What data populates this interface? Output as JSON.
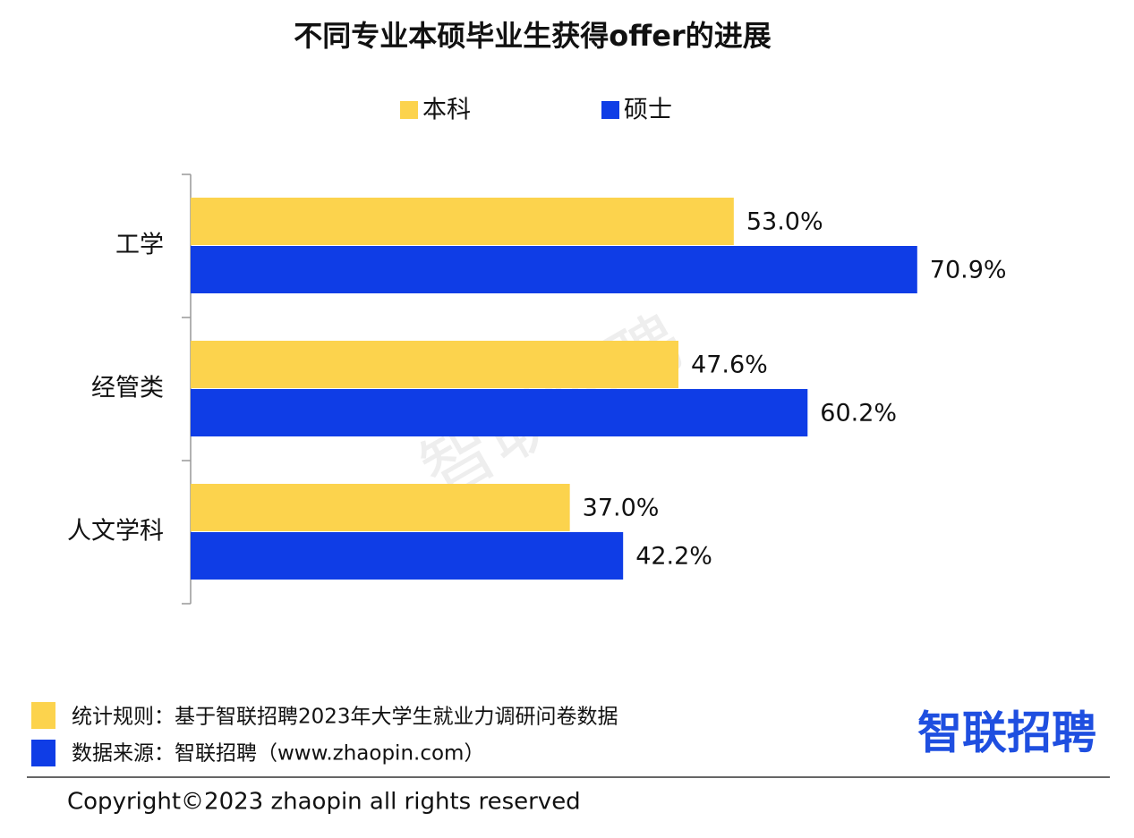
{
  "chart_data": {
    "type": "bar",
    "orientation": "horizontal",
    "title": "不同专业本硕毕业生获得offer的进展",
    "categories": [
      "工学",
      "经管类",
      "人文学科"
    ],
    "series": [
      {
        "name": "本科",
        "color": "#fcd34d",
        "values": [
          53.0,
          47.6,
          37.0
        ],
        "value_labels": [
          "53.0%",
          "47.6%",
          "37.0%"
        ]
      },
      {
        "name": "硕士",
        "color": "#0f3de6",
        "values": [
          70.9,
          60.2,
          42.2
        ],
        "value_labels": [
          "70.9%",
          "60.2%",
          "42.2%"
        ]
      }
    ],
    "xlim": [
      0,
      100
    ]
  },
  "watermark": "智联招聘",
  "footer": {
    "rule": "统计规则：基于智联招聘2023年大学生就业力调研问卷数据",
    "source": "数据来源：智联招聘（www.zhaopin.com）",
    "logo": "智联招聘",
    "copyright": "Copyright©2023 zhaopin all rights reserved"
  }
}
